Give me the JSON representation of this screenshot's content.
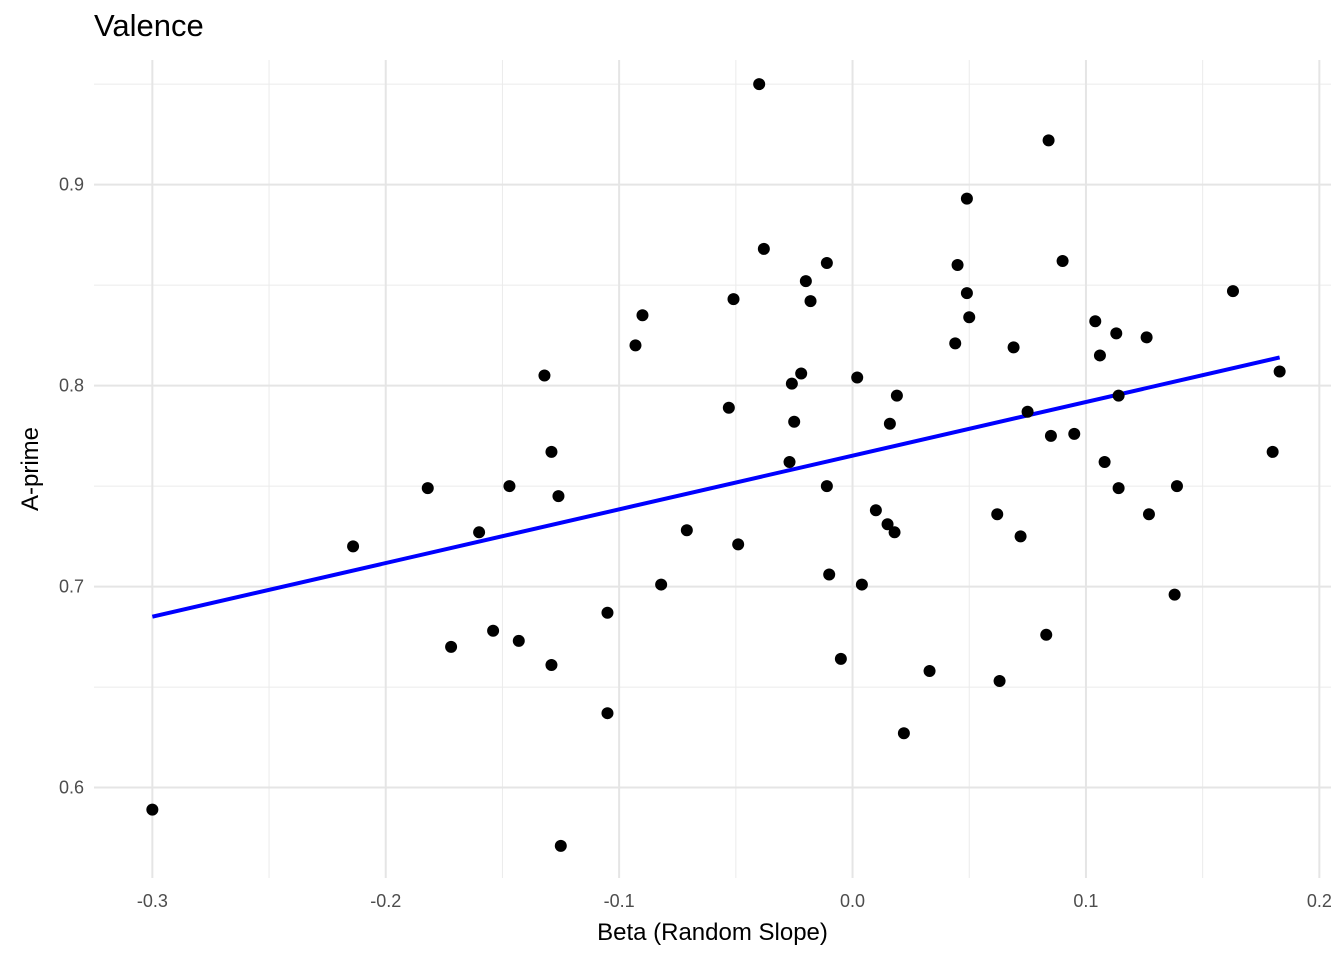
{
  "chart_data": {
    "type": "scatter",
    "title": "Valence",
    "xlabel": "Beta (Random Slope)",
    "ylabel": "A-prime",
    "xlim": [
      -0.325,
      0.205
    ],
    "ylim": [
      0.555,
      0.962
    ],
    "x_ticks": [
      -0.3,
      -0.2,
      -0.1,
      0.0,
      0.1,
      0.2
    ],
    "x_tick_labels": [
      "-0.3",
      "-0.2",
      "-0.1",
      "0.0",
      "0.1",
      "0.2"
    ],
    "y_ticks": [
      0.6,
      0.7,
      0.8,
      0.9
    ],
    "y_tick_labels": [
      "0.6",
      "0.7",
      "0.8",
      "0.9"
    ],
    "grid": true,
    "point_color": "#000000",
    "line_color": "#0000ff",
    "series": [
      {
        "points": [
          [
            -0.3,
            0.589
          ],
          [
            -0.214,
            0.72
          ],
          [
            -0.182,
            0.749
          ],
          [
            -0.172,
            0.67
          ],
          [
            -0.16,
            0.727
          ],
          [
            -0.154,
            0.678
          ],
          [
            -0.147,
            0.75
          ],
          [
            -0.143,
            0.673
          ],
          [
            -0.132,
            0.805
          ],
          [
            -0.129,
            0.767
          ],
          [
            -0.129,
            0.661
          ],
          [
            -0.126,
            0.745
          ],
          [
            -0.125,
            0.571
          ],
          [
            -0.105,
            0.687
          ],
          [
            -0.105,
            0.637
          ],
          [
            -0.093,
            0.82
          ],
          [
            -0.09,
            0.835
          ],
          [
            -0.082,
            0.701
          ],
          [
            -0.071,
            0.728
          ],
          [
            -0.053,
            0.789
          ],
          [
            -0.051,
            0.843
          ],
          [
            -0.049,
            0.721
          ],
          [
            -0.04,
            0.95
          ],
          [
            -0.038,
            0.868
          ],
          [
            -0.027,
            0.762
          ],
          [
            -0.026,
            0.801
          ],
          [
            -0.025,
            0.782
          ],
          [
            -0.022,
            0.806
          ],
          [
            -0.02,
            0.852
          ],
          [
            -0.018,
            0.842
          ],
          [
            -0.011,
            0.861
          ],
          [
            -0.011,
            0.75
          ],
          [
            -0.01,
            0.706
          ],
          [
            -0.005,
            0.664
          ],
          [
            0.002,
            0.804
          ],
          [
            0.004,
            0.701
          ],
          [
            0.01,
            0.738
          ],
          [
            0.015,
            0.731
          ],
          [
            0.016,
            0.781
          ],
          [
            0.018,
            0.727
          ],
          [
            0.019,
            0.795
          ],
          [
            0.022,
            0.627
          ],
          [
            0.033,
            0.658
          ],
          [
            0.044,
            0.821
          ],
          [
            0.045,
            0.86
          ],
          [
            0.049,
            0.893
          ],
          [
            0.049,
            0.846
          ],
          [
            0.05,
            0.834
          ],
          [
            0.062,
            0.736
          ],
          [
            0.063,
            0.653
          ],
          [
            0.069,
            0.819
          ],
          [
            0.072,
            0.725
          ],
          [
            0.075,
            0.787
          ],
          [
            0.083,
            0.676
          ],
          [
            0.084,
            0.922
          ],
          [
            0.085,
            0.775
          ],
          [
            0.09,
            0.862
          ],
          [
            0.095,
            0.776
          ],
          [
            0.104,
            0.832
          ],
          [
            0.106,
            0.815
          ],
          [
            0.108,
            0.762
          ],
          [
            0.113,
            0.826
          ],
          [
            0.114,
            0.749
          ],
          [
            0.114,
            0.795
          ],
          [
            0.126,
            0.824
          ],
          [
            0.127,
            0.736
          ],
          [
            0.138,
            0.696
          ],
          [
            0.139,
            0.75
          ],
          [
            0.163,
            0.847
          ],
          [
            0.18,
            0.767
          ],
          [
            0.183,
            0.807
          ]
        ]
      }
    ],
    "fit_line": {
      "x": [
        -0.3,
        0.183
      ],
      "y": [
        0.685,
        0.814
      ]
    }
  }
}
